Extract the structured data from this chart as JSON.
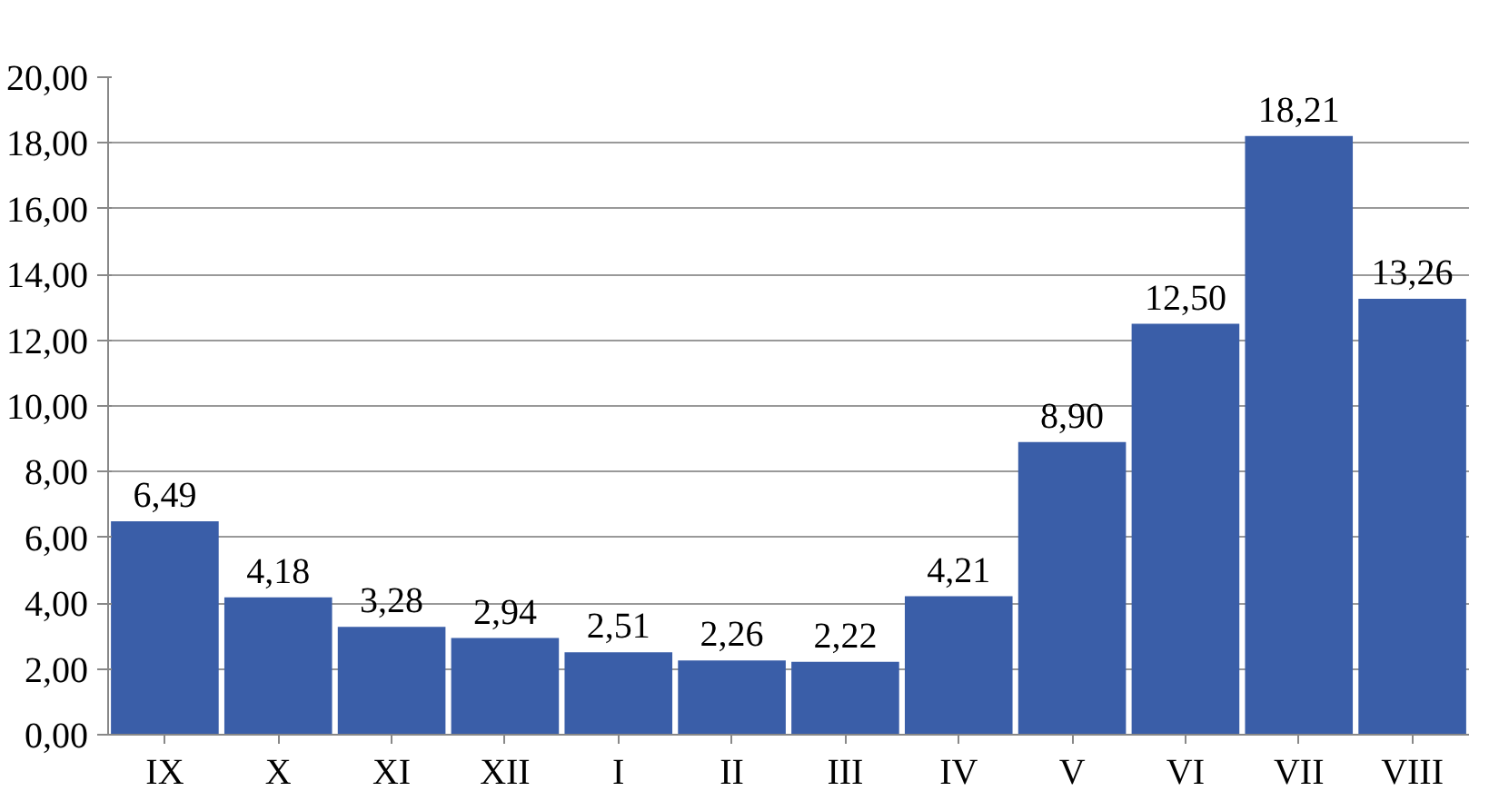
{
  "chart_data": {
    "type": "bar",
    "categories": [
      "IX",
      "X",
      "XI",
      "XII",
      "I",
      "II",
      "III",
      "IV",
      "V",
      "VI",
      "VII",
      "VIII"
    ],
    "values": [
      6.49,
      4.18,
      3.28,
      2.94,
      2.51,
      2.26,
      2.22,
      4.21,
      8.9,
      12.5,
      18.21,
      13.26
    ],
    "value_labels": [
      "6,49",
      "4,18",
      "3,28",
      "2,94",
      "2,51",
      "2,26",
      "2,22",
      "4,21",
      "8,90",
      "12,50",
      "18,21",
      "13,26"
    ],
    "color": "#3a5ea8",
    "ylim": [
      0,
      20
    ],
    "yticks": [
      {
        "value": 0,
        "label": "0,00"
      },
      {
        "value": 2,
        "label": "2,00"
      },
      {
        "value": 4,
        "label": "4,00"
      },
      {
        "value": 6,
        "label": "6,00"
      },
      {
        "value": 8,
        "label": "8,00"
      },
      {
        "value": 10,
        "label": "10,00"
      },
      {
        "value": 12,
        "label": "12,00"
      },
      {
        "value": 14,
        "label": "14,00"
      },
      {
        "value": 16,
        "label": "16,00"
      },
      {
        "value": 18,
        "label": "18,00"
      },
      {
        "value": 20,
        "label": "20,00"
      }
    ],
    "grid": "y"
  }
}
